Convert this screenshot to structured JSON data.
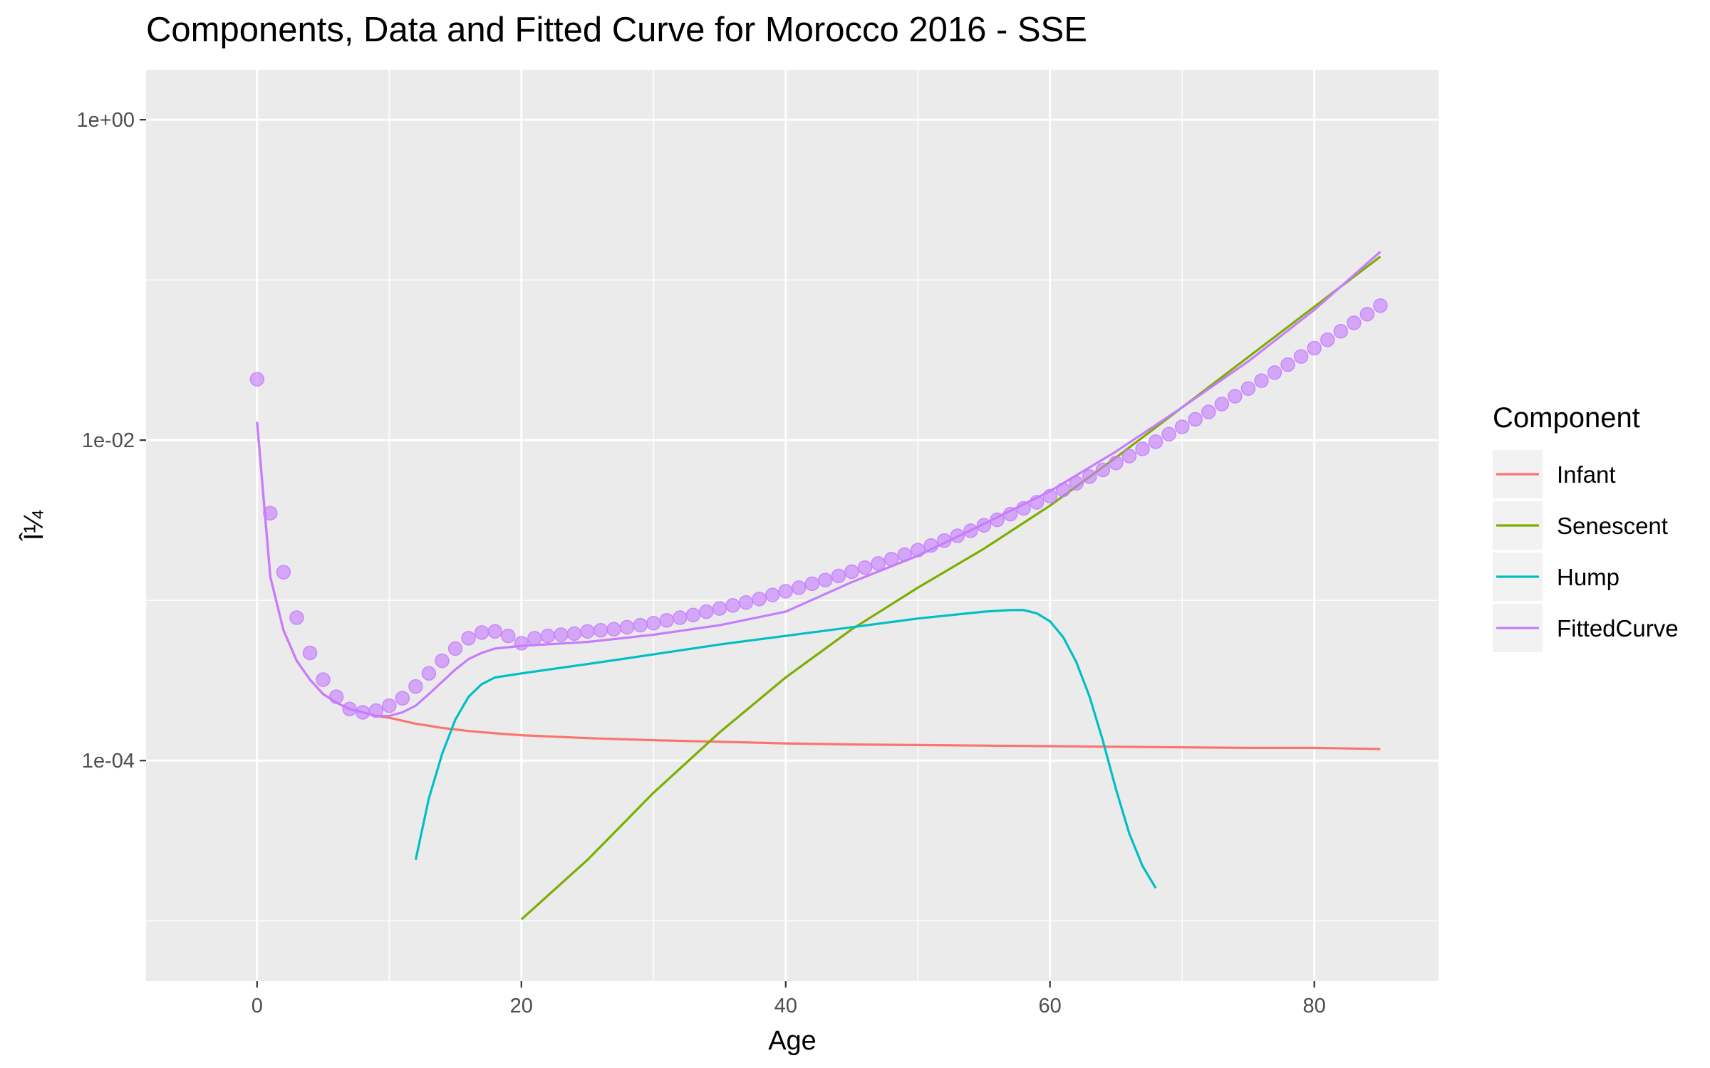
{
  "chart_data": {
    "type": "line",
    "title": "Components, Data and Fitted Curve for Morocco 2016 - SSE",
    "xlabel": "Age",
    "ylabel": "Î¼",
    "xlim": [
      -8.4,
      89.4
    ],
    "ylim": [
      4.2e-06,
      2.05
    ],
    "yscale": "log10",
    "x_ticks": [
      0,
      20,
      40,
      60,
      80
    ],
    "x_tick_labels": [
      "0",
      "20",
      "40",
      "60",
      "80"
    ],
    "y_ticks": [
      0.0001,
      0.01,
      1
    ],
    "y_tick_labels": [
      "1e-04",
      "1e-02",
      "1e+00"
    ],
    "grid": true,
    "legend": {
      "title": "Component",
      "position": "right"
    },
    "colors": {
      "Infant": "#F8766D",
      "Senescent": "#7CAE00",
      "Hump": "#00BFC4",
      "FittedCurve": "#C77CFF",
      "panel": "#EBEBEB",
      "grid": "#FFFFFF"
    },
    "series": [
      {
        "name": "Infant",
        "x": [
          0,
          1,
          2,
          3,
          4,
          5,
          6,
          7,
          8,
          9,
          10,
          12,
          14,
          16,
          18,
          20,
          25,
          30,
          35,
          40,
          45,
          50,
          55,
          60,
          65,
          70,
          75,
          80,
          85
        ],
        "y": [
          0.013,
          0.0014,
          0.00065,
          0.00042,
          0.00032,
          0.00026,
          0.00023,
          0.00021,
          0.0002,
          0.00019,
          0.000185,
          0.00017,
          0.00016,
          0.000153,
          0.000148,
          0.000144,
          0.000138,
          0.000134,
          0.000131,
          0.000128,
          0.000126,
          0.000125,
          0.000124,
          0.000123,
          0.000122,
          0.000121,
          0.00012,
          0.00012,
          0.000118
        ]
      },
      {
        "name": "Senescent",
        "x": [
          20,
          25,
          30,
          35,
          40,
          45,
          50,
          55,
          60,
          65,
          70,
          75,
          80,
          85
        ],
        "y": [
          1.02e-05,
          2.4e-05,
          6.3e-05,
          0.00015,
          0.00033,
          0.00066,
          0.0012,
          0.0021,
          0.0039,
          0.0078,
          0.016,
          0.033,
          0.068,
          0.14
        ]
      },
      {
        "name": "Hump",
        "x": [
          12,
          13,
          14,
          15,
          16,
          17,
          18,
          20,
          25,
          30,
          35,
          40,
          45,
          50,
          55,
          57,
          58,
          59,
          60,
          61,
          62,
          63,
          64,
          65,
          66,
          67,
          68
        ],
        "y": [
          2.4e-05,
          5.8e-05,
          0.00011,
          0.00018,
          0.00025,
          0.0003,
          0.00033,
          0.00035,
          0.0004,
          0.00046,
          0.00053,
          0.0006,
          0.00068,
          0.00077,
          0.00085,
          0.00087,
          0.00087,
          0.00083,
          0.00074,
          0.00059,
          0.00041,
          0.00025,
          0.000133,
          6.6e-05,
          3.5e-05,
          2.2e-05,
          1.6e-05
        ]
      },
      {
        "name": "FittedCurve",
        "x": [
          0,
          1,
          2,
          3,
          4,
          5,
          6,
          7,
          8,
          9,
          10,
          11,
          12,
          13,
          14,
          15,
          16,
          17,
          18,
          20,
          25,
          30,
          35,
          40,
          45,
          50,
          55,
          60,
          65,
          70,
          75,
          80,
          85
        ],
        "y": [
          0.013,
          0.0014,
          0.00065,
          0.00042,
          0.00032,
          0.00026,
          0.00023,
          0.00021,
          0.0002,
          0.00019,
          0.00019,
          0.0002,
          0.00022,
          0.00026,
          0.00031,
          0.00037,
          0.00043,
          0.00047,
          0.0005,
          0.00052,
          0.00055,
          0.00061,
          0.0007,
          0.00085,
          0.0013,
          0.0019,
          0.003,
          0.0048,
          0.0085,
          0.016,
          0.031,
          0.065,
          0.15
        ]
      }
    ],
    "points": {
      "name": "Data",
      "color": "#C77CFF",
      "x": [
        0,
        1,
        2,
        3,
        4,
        5,
        6,
        7,
        8,
        9,
        10,
        11,
        12,
        13,
        14,
        15,
        16,
        17,
        18,
        19,
        20,
        21,
        22,
        23,
        24,
        25,
        26,
        27,
        28,
        29,
        30,
        31,
        32,
        33,
        34,
        35,
        36,
        37,
        38,
        39,
        40,
        41,
        42,
        43,
        44,
        45,
        46,
        47,
        48,
        49,
        50,
        51,
        52,
        53,
        54,
        55,
        56,
        57,
        58,
        59,
        60,
        61,
        62,
        63,
        64,
        65,
        66,
        67,
        68,
        69,
        70,
        71,
        72,
        73,
        74,
        75,
        76,
        77,
        78,
        79,
        80,
        81,
        82,
        83,
        84,
        85
      ],
      "y": [
        0.024,
        0.0035,
        0.0015,
        0.00078,
        0.00047,
        0.00032,
        0.00025,
        0.00021,
        0.0002,
        0.000205,
        0.00022,
        0.000245,
        0.00029,
        0.00035,
        0.00042,
        0.0005,
        0.00058,
        0.00063,
        0.00064,
        0.0006,
        0.00054,
        0.00058,
        0.0006,
        0.00061,
        0.00062,
        0.00064,
        0.00065,
        0.00066,
        0.00068,
        0.0007,
        0.00072,
        0.00075,
        0.00078,
        0.00081,
        0.00085,
        0.00089,
        0.00093,
        0.00097,
        0.00102,
        0.00108,
        0.00114,
        0.0012,
        0.00127,
        0.00134,
        0.00142,
        0.00151,
        0.0016,
        0.0017,
        0.00181,
        0.00193,
        0.00206,
        0.0022,
        0.00236,
        0.00253,
        0.00272,
        0.00294,
        0.00318,
        0.00345,
        0.00375,
        0.00409,
        0.00447,
        0.0049,
        0.00538,
        0.00592,
        0.00652,
        0.0072,
        0.00796,
        0.00882,
        0.00978,
        0.0109,
        0.0121,
        0.0135,
        0.015,
        0.0168,
        0.0188,
        0.021,
        0.0235,
        0.0264,
        0.0296,
        0.0333,
        0.0375,
        0.0423,
        0.0478,
        0.054,
        0.0611,
        0.0691
      ]
    }
  }
}
